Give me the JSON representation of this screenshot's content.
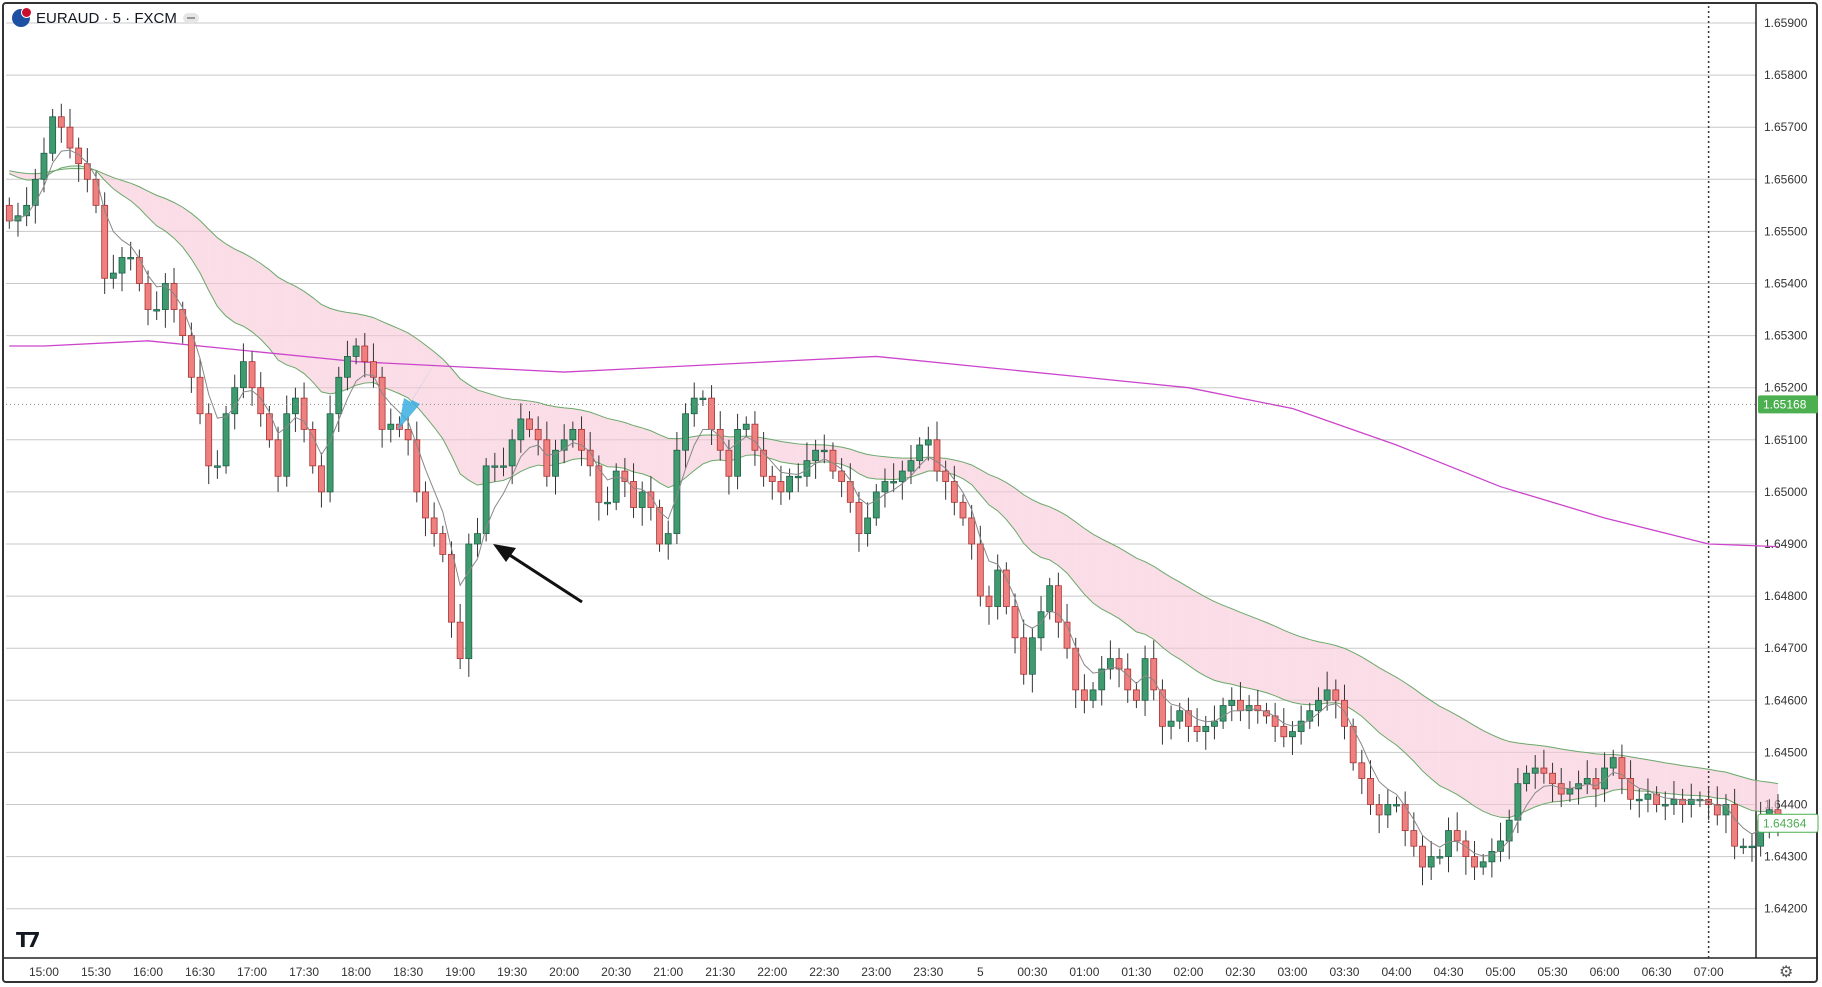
{
  "header": {
    "symbol_title": "EURAUD · 5 · FXCM",
    "symbol_icon": "eur-aud-flag-icon"
  },
  "price_axis": {
    "labels": [
      "1.65900",
      "1.65800",
      "1.65700",
      "1.65600",
      "1.65500",
      "1.65400",
      "1.65300",
      "1.65200",
      "1.65100",
      "1.65000",
      "1.64900",
      "1.64800",
      "1.64700",
      "1.64600",
      "1.64500",
      "1.64400",
      "1.64300",
      "1.64200"
    ],
    "current_price_label": "1.65168",
    "last_price_label": "1.64364"
  },
  "time_axis": {
    "labels": [
      "15:00",
      "15:30",
      "16:00",
      "16:30",
      "17:00",
      "17:30",
      "18:00",
      "18:30",
      "19:00",
      "19:30",
      "20:00",
      "20:30",
      "21:00",
      "21:30",
      "22:00",
      "22:30",
      "23:00",
      "23:30",
      "5",
      "00:30",
      "01:00",
      "01:30",
      "02:00",
      "02:30",
      "03:00",
      "03:30",
      "04:00",
      "04:30",
      "05:00",
      "05:30",
      "06:00",
      "06:30",
      "07:00"
    ]
  },
  "colors": {
    "up": "#3f9b6e",
    "down": "#ef8080",
    "ma_long": "#cc44cc",
    "band_bear": "#f7c6d6",
    "band_bull": "#cdeccd",
    "band_line": "#6aa86a",
    "current_price": "#4caf50",
    "blue_arrow": "#3aaee0"
  },
  "chart_data": {
    "type": "candlestick",
    "timeframe": "5",
    "ylim": [
      1.6415,
      1.6595
    ],
    "closes": [
      1.6552,
      1.6553,
      1.6555,
      1.656,
      1.6565,
      1.6572,
      1.657,
      1.6566,
      1.6563,
      1.656,
      1.6555,
      1.6541,
      1.6542,
      1.6545,
      1.6545,
      1.654,
      1.6535,
      1.6535,
      1.654,
      1.6535,
      1.653,
      1.6522,
      1.6515,
      1.6505,
      1.6505,
      1.6515,
      1.652,
      1.6525,
      1.652,
      1.6515,
      1.651,
      1.6503,
      1.6515,
      1.6518,
      1.6512,
      1.6505,
      1.65,
      1.6515,
      1.6522,
      1.6526,
      1.6528,
      1.6525,
      1.6522,
      1.6512,
      1.6513,
      1.6512,
      1.651,
      1.65,
      1.6495,
      1.6492,
      1.6488,
      1.6475,
      1.6468,
      1.649,
      1.6492,
      1.6505,
      1.6505,
      1.6505,
      1.651,
      1.6514,
      1.6512,
      1.651,
      1.6503,
      1.6508,
      1.651,
      1.6512,
      1.6508,
      1.6505,
      1.6498,
      1.6498,
      1.6504,
      1.6502,
      1.6497,
      1.65,
      1.6497,
      1.649,
      1.6492,
      1.6508,
      1.6515,
      1.6518,
      1.6518,
      1.6512,
      1.6508,
      1.6503,
      1.6512,
      1.6513,
      1.6508,
      1.6503,
      1.6502,
      1.65,
      1.6503,
      1.6503,
      1.6506,
      1.6508,
      1.6508,
      1.6504,
      1.6502,
      1.6498,
      1.6492,
      1.6495,
      1.65,
      1.6502,
      1.6502,
      1.6504,
      1.6506,
      1.6509,
      1.651,
      1.6504,
      1.6502,
      1.6498,
      1.6495,
      1.649,
      1.648,
      1.6478,
      1.6485,
      1.6478,
      1.6472,
      1.6465,
      1.6472,
      1.6477,
      1.6482,
      1.6475,
      1.647,
      1.6462,
      1.646,
      1.6462,
      1.6466,
      1.6468,
      1.6466,
      1.6462,
      1.646,
      1.6468,
      1.6462,
      1.6455,
      1.6456,
      1.6458,
      1.6455,
      1.6454,
      1.6455,
      1.6456,
      1.6459,
      1.646,
      1.6458,
      1.6459,
      1.6458,
      1.6457,
      1.6455,
      1.6453,
      1.6454,
      1.6456,
      1.6458,
      1.646,
      1.6462,
      1.646,
      1.6455,
      1.6448,
      1.6445,
      1.644,
      1.6438,
      1.644,
      1.644,
      1.6435,
      1.6432,
      1.6428,
      1.643,
      1.643,
      1.6435,
      1.6433,
      1.643,
      1.6428,
      1.6429,
      1.6431,
      1.6433,
      1.6437,
      1.6444,
      1.6446,
      1.6447,
      1.6446,
      1.6444,
      1.6442,
      1.6443,
      1.6444,
      1.6445,
      1.6443,
      1.6447,
      1.6449,
      1.6445,
      1.6441,
      1.6441,
      1.6442,
      1.644,
      1.644,
      1.6441,
      1.644,
      1.6441,
      1.6441,
      1.644,
      1.6438,
      1.644,
      1.6432,
      1.6432,
      1.6432,
      1.6437,
      1.6439,
      1.64364
    ],
    "long_ma_hourly": {
      "times": [
        "15:00",
        "16:00",
        "17:00",
        "18:00",
        "19:00",
        "20:00",
        "21:00",
        "22:00",
        "23:00",
        "5",
        "01:00",
        "02:00",
        "03:00",
        "04:00",
        "05:00",
        "06:00",
        "07:00"
      ],
      "values": [
        1.6528,
        1.6529,
        1.6527,
        1.6525,
        1.6524,
        1.6523,
        1.6524,
        1.6525,
        1.6526,
        1.6524,
        1.6522,
        1.652,
        1.6516,
        1.6509,
        1.6501,
        1.6495,
        1.649
      ]
    },
    "current_price": 1.65168,
    "last_price": 1.64364
  }
}
